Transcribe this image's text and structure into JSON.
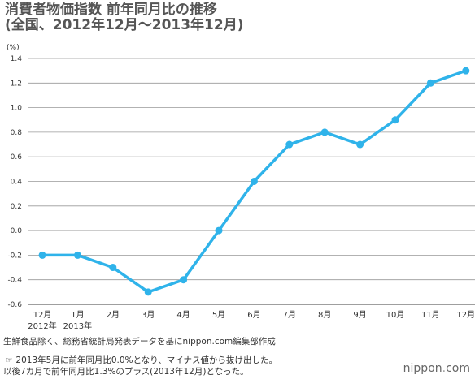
{
  "header": {
    "title": "消費者物価指数 前年同月比の推移",
    "subtitle": "(全国、2012年12月〜2013年12月)"
  },
  "chart_data": {
    "type": "line",
    "unit_label": "(%)",
    "categories": [
      "12月",
      "1月",
      "2月",
      "3月",
      "4月",
      "5月",
      "6月",
      "7月",
      "8月",
      "9月",
      "10月",
      "11月",
      "12月"
    ],
    "category_sublabels": [
      "2012年",
      "2013年",
      "",
      "",
      "",
      "",
      "",
      "",
      "",
      "",
      "",
      "",
      ""
    ],
    "series": [
      {
        "values": [
          -0.2,
          -0.2,
          -0.3,
          -0.5,
          -0.4,
          0.0,
          0.4,
          0.7,
          0.8,
          0.7,
          0.9,
          1.2,
          1.3
        ]
      }
    ],
    "y_ticks": [
      "1.4",
      "1.2",
      "1.0",
      "0.8",
      "0.6",
      "0.4",
      "0.2",
      "0.0",
      "-0.2",
      "-0.4",
      "-0.6"
    ],
    "ylim": [
      -0.6,
      1.4
    ],
    "grid": true,
    "line_color": "#2fb3ea"
  },
  "footer": {
    "source": "生鮮食品除く、総務省統計局発表データを基にnippon.com編集部作成",
    "note_icon": "pointing-hand-icon",
    "note_line1": "2013年5月に前年同月比0.0%となり、マイナス値から抜け出した。",
    "note_line2": "以後7カ月で前年同月比1.3%のプラス(2013年12月)となった。",
    "brand_name": "nippon",
    "brand_dot": ".",
    "brand_tld": "com"
  }
}
